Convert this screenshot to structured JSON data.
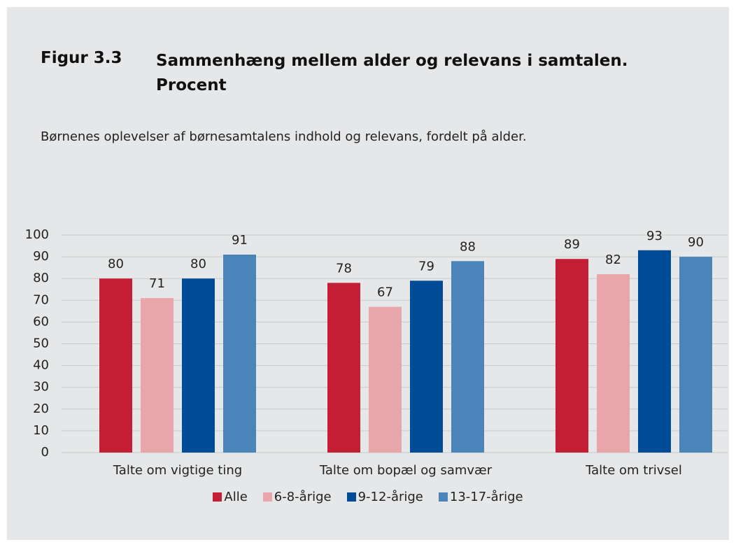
{
  "chart_data": {
    "type": "bar",
    "figure_label": "Figur 3.3",
    "title": "Sammenhæng mellem alder og relevans i samtalen. Procent",
    "subtitle": "Børnenes oplevelser af børnesamtalens indhold og relevans, fordelt på alder.",
    "categories": [
      "Talte om vigtige ting",
      "Talte om bopæl og samvær",
      "Talte om trivsel"
    ],
    "series": [
      {
        "name": "Alle",
        "color": "#c41e34",
        "values": [
          80,
          78,
          89
        ]
      },
      {
        "name": "6-8-årige",
        "color": "#e8a6ab",
        "values": [
          71,
          67,
          82
        ]
      },
      {
        "name": "9-12-årige",
        "color": "#004c97",
        "values": [
          80,
          79,
          93
        ]
      },
      {
        "name": "13-17-årige",
        "color": "#4a84b8",
        "values": [
          91,
          88,
          90
        ]
      }
    ],
    "ylim": [
      0,
      100
    ],
    "yticks": [
      0,
      10,
      20,
      30,
      40,
      50,
      60,
      70,
      80,
      90,
      100
    ],
    "grid": true,
    "legend": "bottom"
  }
}
